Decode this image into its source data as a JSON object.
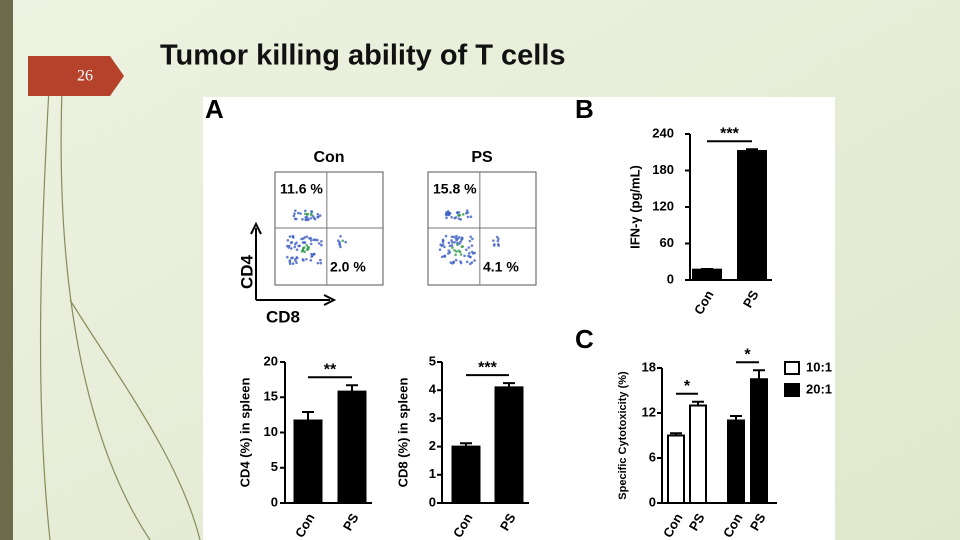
{
  "slide_number": "26",
  "title": "Tumor killing ability of T cells",
  "figure": {
    "panel_labels": [
      "A",
      "B",
      "C"
    ],
    "flow": {
      "plots": [
        {
          "title": "Con",
          "upper_left": "11.6 %",
          "lower_right": "2.0 %"
        },
        {
          "title": "PS",
          "upper_left": "15.8 %",
          "lower_right": "4.1 %"
        }
      ],
      "y_label": "CD4",
      "x_label": "CD8"
    }
  },
  "chart_data": [
    {
      "type": "bar",
      "y_label": "IFN-γ (pg/mL)",
      "categories": [
        "Con",
        "PS"
      ],
      "values": [
        17,
        212
      ],
      "errors": [
        1,
        3
      ],
      "color": "#000000",
      "ylim": [
        0,
        240
      ],
      "yticks": [
        0,
        60,
        120,
        180,
        240
      ],
      "annotations": [
        "***"
      ]
    },
    {
      "type": "bar",
      "y_label": "CD4 (%) in spleen",
      "categories": [
        "Con",
        "PS"
      ],
      "values": [
        11.7,
        15.8
      ],
      "errors": [
        1.2,
        0.9
      ],
      "color": "#000000",
      "ylim": [
        0,
        20
      ],
      "yticks": [
        0,
        5,
        10,
        15,
        20
      ],
      "annotations": [
        "**"
      ]
    },
    {
      "type": "bar",
      "y_label": "CD8 (%) in spleen",
      "categories": [
        "Con",
        "PS"
      ],
      "values": [
        2.0,
        4.1
      ],
      "errors": [
        0.12,
        0.15
      ],
      "color": "#000000",
      "ylim": [
        0,
        5
      ],
      "yticks": [
        0,
        1,
        2,
        3,
        4,
        5
      ],
      "annotations": [
        "***"
      ]
    },
    {
      "type": "grouped_bar",
      "y_label": "Specific Cytotoxicity (%)",
      "categories": [
        "Con",
        "PS"
      ],
      "series": [
        {
          "name": "10:1",
          "color": "#ffffff",
          "values": [
            9,
            13
          ],
          "errors": [
            0.3,
            0.5
          ]
        },
        {
          "name": "20:1",
          "color": "#000000",
          "values": [
            11,
            16.5
          ],
          "errors": [
            0.6,
            1.2
          ]
        }
      ],
      "ylim": [
        0,
        18
      ],
      "yticks": [
        0,
        6,
        12,
        18
      ],
      "annotations": [
        "*",
        "*"
      ]
    }
  ]
}
